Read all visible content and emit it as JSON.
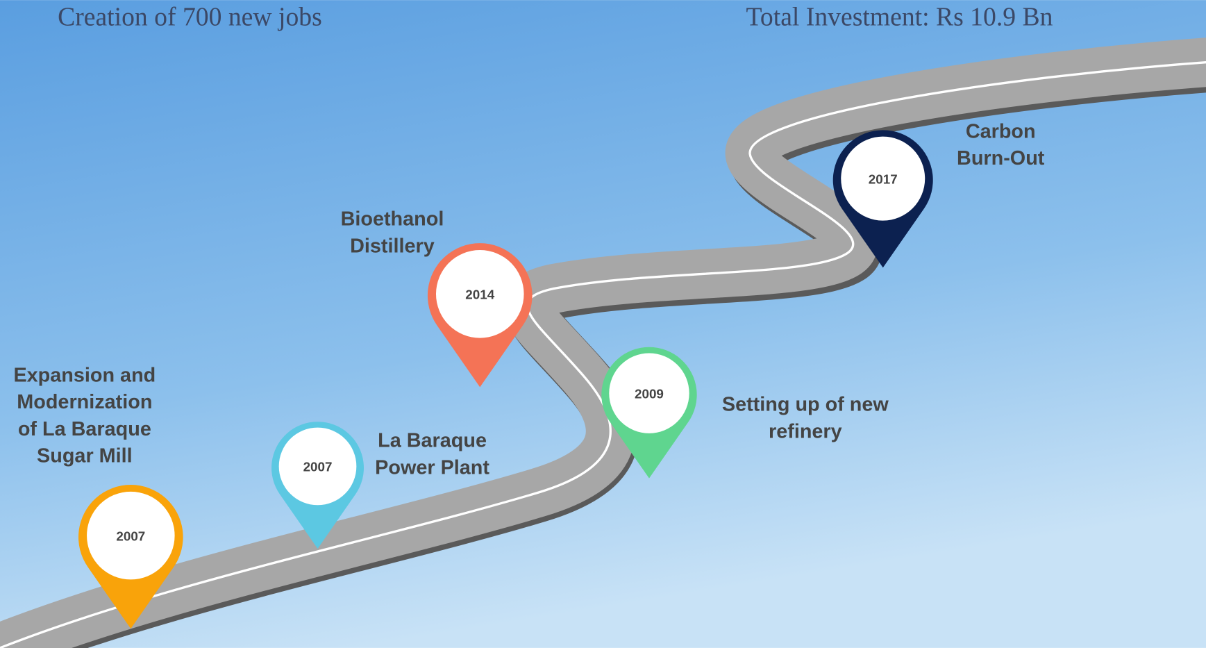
{
  "header": {
    "left": "Creation of 700 new jobs",
    "right": "Total Investment: Rs 10.9 Bn"
  },
  "milestones": [
    {
      "year": "2007",
      "label": [
        "Expansion and",
        "Modernization",
        "of La Baraque",
        "Sugar Mill"
      ]
    },
    {
      "year": "2007",
      "label": [
        "La Baraque",
        "Power Plant"
      ]
    },
    {
      "year": "2014",
      "label": [
        "Bioethanol",
        "Distillery"
      ]
    },
    {
      "year": "2009",
      "label": [
        "Setting up of new",
        "refinery"
      ]
    },
    {
      "year": "2017",
      "label": [
        "Carbon",
        "Burn-Out"
      ]
    }
  ]
}
